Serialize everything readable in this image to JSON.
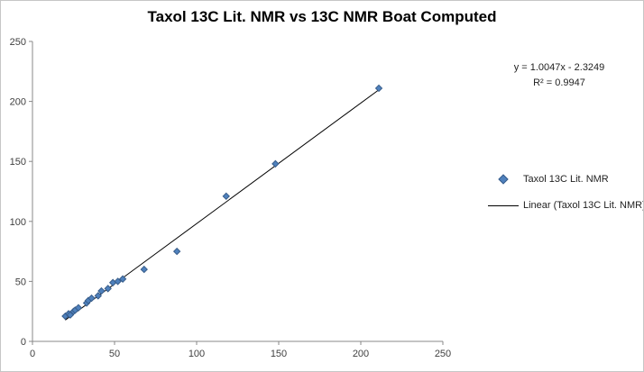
{
  "chart_data": {
    "type": "scatter",
    "title": "Taxol 13C Lit. NMR vs 13C NMR Boat Computed",
    "xlabel": "",
    "ylabel": "",
    "xlim": [
      0,
      250
    ],
    "ylim": [
      0,
      250
    ],
    "x_ticks": [
      0,
      50,
      100,
      150,
      200,
      250
    ],
    "y_ticks": [
      0,
      50,
      100,
      150,
      200,
      250
    ],
    "grid": false,
    "legend_position": "right",
    "annotation": {
      "equation": "y = 1.0047x - 2.3249",
      "r_squared": "R² = 0.9947"
    },
    "series": [
      {
        "name": "Taxol 13C Lit. NMR",
        "type": "scatter",
        "marker": "diamond",
        "color": "#4f81bd",
        "marker_border": "#385d8a",
        "points": [
          [
            20,
            21
          ],
          [
            22,
            23
          ],
          [
            23,
            22
          ],
          [
            25,
            25
          ],
          [
            26,
            26
          ],
          [
            28,
            28
          ],
          [
            33,
            32
          ],
          [
            34,
            34
          ],
          [
            36,
            36
          ],
          [
            40,
            38
          ],
          [
            42,
            42
          ],
          [
            46,
            44
          ],
          [
            49,
            49
          ],
          [
            52,
            50
          ],
          [
            55,
            52
          ],
          [
            68,
            60
          ],
          [
            88,
            75
          ],
          [
            118,
            121
          ],
          [
            148,
            148
          ],
          [
            211,
            211
          ]
        ]
      },
      {
        "name": "Linear (Taxol 13C Lit. NMR)",
        "type": "line",
        "color": "#000000",
        "slope": 1.0047,
        "intercept": -2.3249,
        "x_range": [
          20,
          212
        ]
      }
    ]
  }
}
